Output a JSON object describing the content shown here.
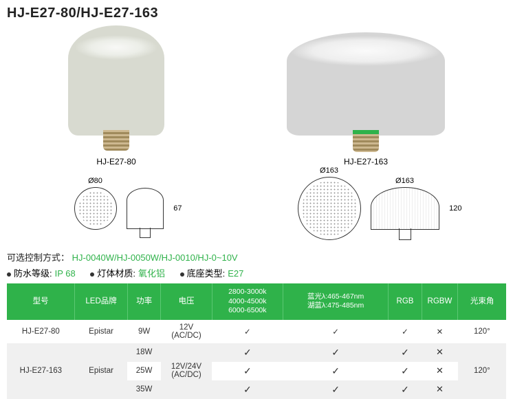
{
  "title": "HJ-E27-80/HJ-E27-163",
  "products": {
    "small": {
      "caption": "HJ-E27-80",
      "diameterLabel": "Ø80",
      "heightLabel": "67"
    },
    "large": {
      "caption": "HJ-E27-163",
      "diameterLabel": "Ø163",
      "diameterLabel2": "Ø163",
      "heightLabel": "120"
    }
  },
  "specOptions": {
    "controlLabel": "可选控制方式：",
    "controlValue": "HJ-0040W/HJ-0050W/HJ-0010/HJ-0~10V",
    "ipLabel": "防水等级:",
    "ipValue": "IP 68",
    "materialLabel": "灯体材质:",
    "materialValue": "氧化铝",
    "baseLabel": "底座类型:",
    "baseValue": "E27"
  },
  "table": {
    "headers": {
      "model": "型号",
      "brand": "LED品牌",
      "power": "功率",
      "voltage": "电压",
      "cct": "2800-3000k\n4000-4500k\n6000-6500k",
      "wavelength": "蓝光λ:465-467nm\n湖蓝λ:475-485nm",
      "rgb": "RGB",
      "rgbw": "RGBW",
      "beam": "光束角"
    },
    "colWidths": [
      "90",
      "70",
      "44",
      "68",
      "94",
      "140",
      "44",
      "48",
      "64"
    ],
    "headerBg": "#2fb24a",
    "rows": [
      {
        "model": "HJ-E27-80",
        "brand": "Epistar",
        "power": "9W",
        "voltage": "12V\n(AC/DC)",
        "cct": "✓",
        "wl": "✓",
        "rgb": "✓",
        "rgbw": "✕",
        "beam": "120°",
        "cls": "odd"
      },
      {
        "model": "",
        "brand": "",
        "power": "18W",
        "voltage": "",
        "cct": "✓",
        "wl": "✓",
        "rgb": "✓",
        "rgbw": "✕",
        "beam": "",
        "cls": "even"
      },
      {
        "model": "HJ-E27-163",
        "brand": "Epistar",
        "power": "25W",
        "voltage": "12V/24V\n(AC/DC)",
        "cct": "✓",
        "wl": "✓",
        "rgb": "✓",
        "rgbw": "✕",
        "beam": "120°",
        "cls": "odd"
      },
      {
        "model": "",
        "brand": "",
        "power": "35W",
        "voltage": "",
        "cct": "✓",
        "wl": "✓",
        "rgb": "✓",
        "rgbw": "✕",
        "beam": "",
        "cls": "even"
      }
    ],
    "merges": {
      "model2": {
        "from": 1,
        "span": 3
      },
      "brand2": {
        "from": 1,
        "span": 3
      },
      "voltage2": {
        "from": 1,
        "span": 3
      },
      "beam2": {
        "from": 1,
        "span": 3
      }
    }
  }
}
